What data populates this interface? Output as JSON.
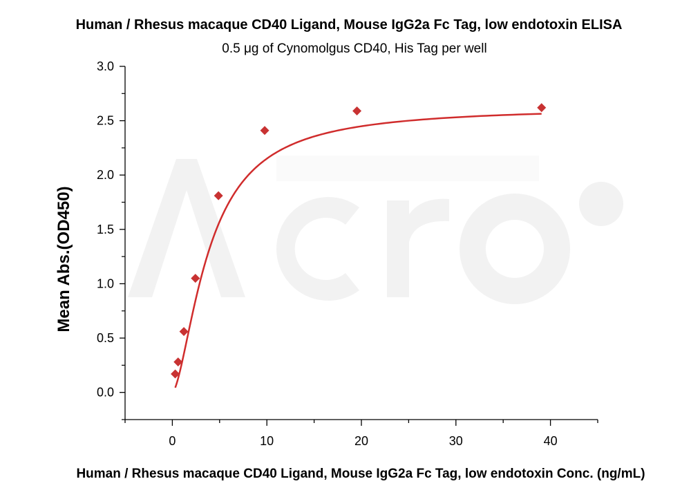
{
  "chart_data": {
    "type": "scatter",
    "title": "Human / Rhesus macaque CD40 Ligand, Mouse IgG2a Fc Tag, low endotoxin ELISA",
    "subtitle": "0.5 μg of Cynomolgus CD40, His Tag per well",
    "xlabel": "Human / Rhesus macaque CD40 Ligand, Mouse IgG2a Fc Tag, low endotoxin Conc. (ng/mL)",
    "ylabel": "Mean Abs.(OD450)",
    "xlim": [
      -5,
      45
    ],
    "ylim": [
      -0.25,
      3.0
    ],
    "x_ticks": [
      0,
      10,
      20,
      30,
      40
    ],
    "x_tick_labels": [
      "0",
      "10",
      "20",
      "30",
      "40"
    ],
    "y_ticks": [
      0.0,
      0.5,
      1.0,
      1.5,
      2.0,
      2.5,
      3.0
    ],
    "y_tick_labels": [
      "0.0",
      "0.5",
      "1.0",
      "1.5",
      "2.0",
      "2.5",
      "3.0"
    ],
    "grid": false,
    "series": [
      {
        "x": [
          0.305,
          0.61,
          1.22,
          2.44,
          4.88,
          9.77,
          19.53,
          39.06
        ],
        "y": [
          0.17,
          0.28,
          0.56,
          1.05,
          1.81,
          2.41,
          2.59,
          2.62
        ],
        "marker": "diamond",
        "color": "#c83232",
        "fit_line": true,
        "fit_color": "#d02c2c"
      }
    ]
  }
}
